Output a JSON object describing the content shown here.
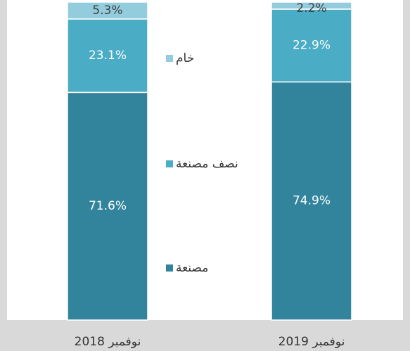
{
  "chart_data": {
    "type": "stacked_bar",
    "categories": [
      "نوفمبر 2018",
      "نوفمبر 2019"
    ],
    "series": [
      {
        "name": "مصنعة",
        "color": "#31849b",
        "values": [
          71.6,
          74.9
        ],
        "value_labels": [
          "71.6%",
          "74.9%"
        ],
        "label_color": "#ffffff"
      },
      {
        "name": "نصف مصنعة",
        "color": "#4bacc6",
        "values": [
          23.1,
          22.9
        ],
        "value_labels": [
          "23.1%",
          "22.9%"
        ],
        "label_color": "#ffffff"
      },
      {
        "name": "خام",
        "color": "#93cddd",
        "values": [
          5.3,
          2.2
        ],
        "value_labels": [
          "5.3%",
          "2.2%"
        ],
        "label_color": "#404040"
      }
    ],
    "ylim": [
      0,
      100
    ]
  }
}
